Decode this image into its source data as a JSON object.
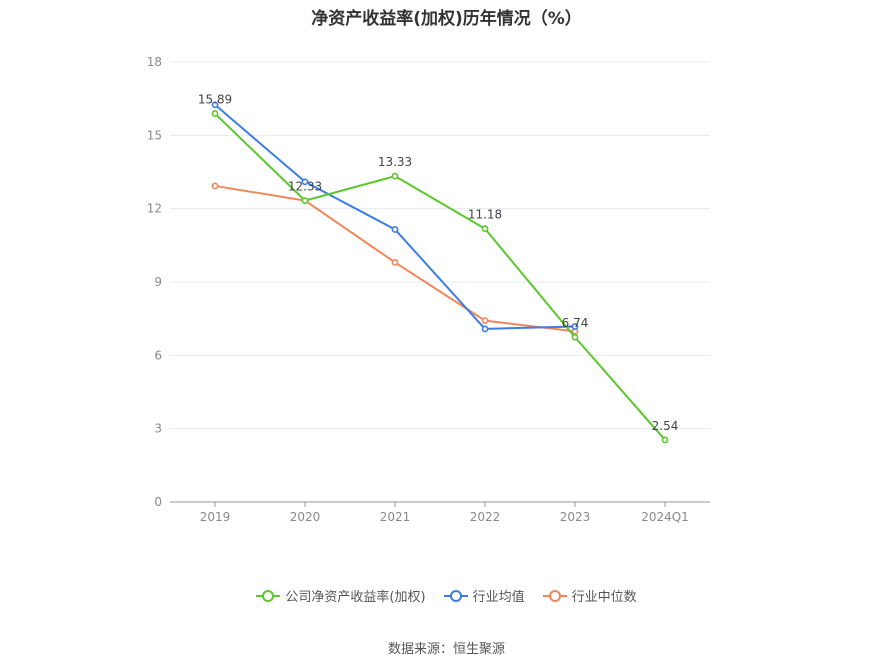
{
  "chart_data": {
    "type": "line",
    "title": "净资产收益率(加权)历年情况（%）",
    "categories": [
      "2019",
      "2020",
      "2021",
      "2022",
      "2023",
      "2024Q1"
    ],
    "ylim": [
      0,
      18
    ],
    "yticks": [
      0,
      3,
      6,
      9,
      12,
      15,
      18
    ],
    "grid": true,
    "legend_position": "bottom",
    "series": [
      {
        "name": "公司净资产收益率(加权)",
        "color": "#5bc72b",
        "values": [
          15.89,
          12.33,
          13.33,
          11.18,
          6.74,
          2.54
        ],
        "show_labels": true
      },
      {
        "name": "行业均值",
        "color": "#3d7de6",
        "values": [
          16.25,
          13.1,
          11.15,
          7.08,
          7.18,
          null
        ],
        "show_labels": false
      },
      {
        "name": "行业中位数",
        "color": "#f0865a",
        "values": [
          12.93,
          12.33,
          9.8,
          7.42,
          6.98,
          null
        ],
        "show_labels": false
      }
    ]
  },
  "source": "数据来源：恒生聚源"
}
